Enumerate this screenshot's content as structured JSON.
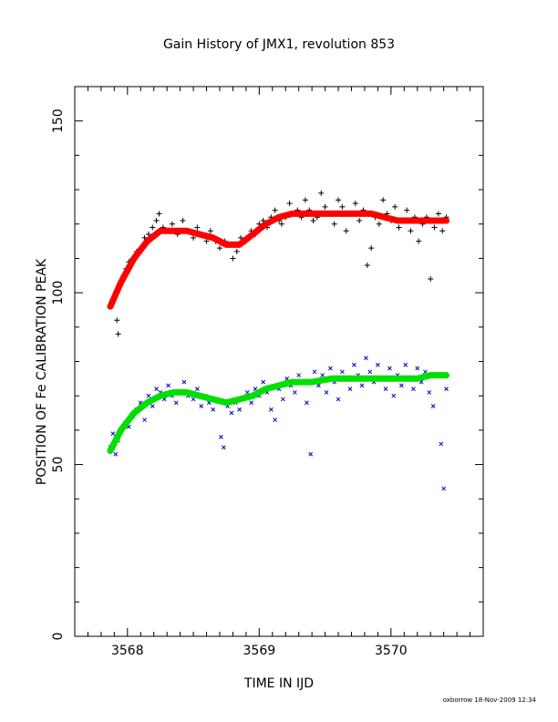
{
  "chart_data": {
    "type": "scatter",
    "title": "Gain History of JMX1, revolution 853",
    "xlabel": "TIME IN IJD",
    "ylabel": "POSITION OF Fe CALIBRATION PEAK",
    "xlim": [
      3567.6,
      3570.7
    ],
    "ylim": [
      0,
      160
    ],
    "xticks_major": [
      3568,
      3569,
      3570
    ],
    "xticks_minor_step": 0.1,
    "yticks_major": [
      0,
      50,
      100,
      150
    ],
    "yticks_minor_step": 10,
    "grid": false,
    "series": [
      {
        "marker": "plus",
        "color": "#000000",
        "points": [
          [
            3567.87,
            96
          ],
          [
            3567.9,
            99
          ],
          [
            3567.92,
            92
          ],
          [
            3567.93,
            88
          ],
          [
            3567.95,
            103
          ],
          [
            3567.97,
            105
          ],
          [
            3567.99,
            107
          ],
          [
            3568.01,
            109
          ],
          [
            3568.04,
            110
          ],
          [
            3568.07,
            112
          ],
          [
            3568.1,
            113
          ],
          [
            3568.13,
            116
          ],
          [
            3568.16,
            117
          ],
          [
            3568.19,
            119
          ],
          [
            3568.22,
            121
          ],
          [
            3568.24,
            123
          ],
          [
            3568.27,
            119
          ],
          [
            3568.3,
            118
          ],
          [
            3568.34,
            120
          ],
          [
            3568.38,
            117
          ],
          [
            3568.42,
            121
          ],
          [
            3568.46,
            118
          ],
          [
            3568.5,
            116
          ],
          [
            3568.53,
            119
          ],
          [
            3568.56,
            117
          ],
          [
            3568.6,
            115
          ],
          [
            3568.63,
            118
          ],
          [
            3568.67,
            115
          ],
          [
            3568.7,
            113
          ],
          [
            3568.74,
            115
          ],
          [
            3568.78,
            114
          ],
          [
            3568.8,
            110
          ],
          [
            3568.83,
            112
          ],
          [
            3568.86,
            116
          ],
          [
            3568.9,
            115
          ],
          [
            3568.94,
            118
          ],
          [
            3568.97,
            117
          ],
          [
            3569.0,
            120
          ],
          [
            3569.03,
            121
          ],
          [
            3569.06,
            119
          ],
          [
            3569.09,
            122
          ],
          [
            3569.12,
            124
          ],
          [
            3569.15,
            121
          ],
          [
            3569.17,
            120
          ],
          [
            3569.2,
            122
          ],
          [
            3569.23,
            126
          ],
          [
            3569.26,
            123
          ],
          [
            3569.29,
            124
          ],
          [
            3569.32,
            122
          ],
          [
            3569.35,
            127
          ],
          [
            3569.38,
            124
          ],
          [
            3569.41,
            121
          ],
          [
            3569.44,
            122
          ],
          [
            3569.47,
            129
          ],
          [
            3569.5,
            125
          ],
          [
            3569.53,
            123
          ],
          [
            3569.57,
            120
          ],
          [
            3569.6,
            127
          ],
          [
            3569.63,
            125
          ],
          [
            3569.66,
            118
          ],
          [
            3569.7,
            123
          ],
          [
            3569.73,
            126
          ],
          [
            3569.76,
            121
          ],
          [
            3569.79,
            124
          ],
          [
            3569.82,
            108
          ],
          [
            3569.85,
            113
          ],
          [
            3569.88,
            122
          ],
          [
            3569.91,
            120
          ],
          [
            3569.94,
            127
          ],
          [
            3569.97,
            123
          ],
          [
            3570.0,
            121
          ],
          [
            3570.03,
            125
          ],
          [
            3570.06,
            119
          ],
          [
            3570.09,
            121
          ],
          [
            3570.12,
            124
          ],
          [
            3570.15,
            118
          ],
          [
            3570.18,
            122
          ],
          [
            3570.21,
            115
          ],
          [
            3570.24,
            120
          ],
          [
            3570.27,
            122
          ],
          [
            3570.3,
            104
          ],
          [
            3570.33,
            119
          ],
          [
            3570.36,
            123
          ],
          [
            3570.39,
            118
          ],
          [
            3570.42,
            122
          ]
        ]
      },
      {
        "marker": "cross",
        "color": "#0000cc",
        "points": [
          [
            3567.87,
            55
          ],
          [
            3567.89,
            59
          ],
          [
            3567.91,
            53
          ],
          [
            3567.93,
            57
          ],
          [
            3567.95,
            60
          ],
          [
            3567.98,
            62
          ],
          [
            3568.01,
            61
          ],
          [
            3568.04,
            64
          ],
          [
            3568.07,
            66
          ],
          [
            3568.1,
            68
          ],
          [
            3568.13,
            63
          ],
          [
            3568.16,
            70
          ],
          [
            3568.19,
            67
          ],
          [
            3568.22,
            72
          ],
          [
            3568.25,
            71
          ],
          [
            3568.28,
            69
          ],
          [
            3568.31,
            73
          ],
          [
            3568.34,
            70
          ],
          [
            3568.37,
            68
          ],
          [
            3568.4,
            71
          ],
          [
            3568.43,
            74
          ],
          [
            3568.46,
            70
          ],
          [
            3568.5,
            69
          ],
          [
            3568.53,
            72
          ],
          [
            3568.56,
            67
          ],
          [
            3568.59,
            70
          ],
          [
            3568.62,
            68
          ],
          [
            3568.65,
            66
          ],
          [
            3568.68,
            69
          ],
          [
            3568.71,
            58
          ],
          [
            3568.73,
            55
          ],
          [
            3568.76,
            67
          ],
          [
            3568.79,
            65
          ],
          [
            3568.82,
            68
          ],
          [
            3568.85,
            66
          ],
          [
            3568.88,
            69
          ],
          [
            3568.91,
            71
          ],
          [
            3568.94,
            68
          ],
          [
            3568.97,
            72
          ],
          [
            3569.0,
            70
          ],
          [
            3569.03,
            74
          ],
          [
            3569.06,
            71
          ],
          [
            3569.09,
            66
          ],
          [
            3569.12,
            63
          ],
          [
            3569.15,
            72
          ],
          [
            3569.18,
            69
          ],
          [
            3569.21,
            75
          ],
          [
            3569.24,
            73
          ],
          [
            3569.27,
            71
          ],
          [
            3569.3,
            76
          ],
          [
            3569.33,
            74
          ],
          [
            3569.36,
            68
          ],
          [
            3569.39,
            53
          ],
          [
            3569.42,
            77
          ],
          [
            3569.45,
            73
          ],
          [
            3569.48,
            76
          ],
          [
            3569.51,
            71
          ],
          [
            3569.54,
            78
          ],
          [
            3569.57,
            74
          ],
          [
            3569.6,
            69
          ],
          [
            3569.63,
            77
          ],
          [
            3569.66,
            75
          ],
          [
            3569.69,
            72
          ],
          [
            3569.72,
            79
          ],
          [
            3569.75,
            76
          ],
          [
            3569.78,
            73
          ],
          [
            3569.81,
            81
          ],
          [
            3569.84,
            77
          ],
          [
            3569.87,
            74
          ],
          [
            3569.9,
            79
          ],
          [
            3569.93,
            75
          ],
          [
            3569.96,
            72
          ],
          [
            3569.99,
            78
          ],
          [
            3570.02,
            70
          ],
          [
            3570.05,
            76
          ],
          [
            3570.08,
            73
          ],
          [
            3570.11,
            79
          ],
          [
            3570.14,
            75
          ],
          [
            3570.17,
            72
          ],
          [
            3570.2,
            78
          ],
          [
            3570.23,
            74
          ],
          [
            3570.26,
            77
          ],
          [
            3570.29,
            71
          ],
          [
            3570.32,
            67
          ],
          [
            3570.35,
            76
          ],
          [
            3570.38,
            56
          ],
          [
            3570.4,
            43
          ],
          [
            3570.42,
            72
          ]
        ]
      },
      {
        "marker": "line",
        "color": "#ff0000",
        "points": [
          [
            3567.87,
            96
          ],
          [
            3567.95,
            103
          ],
          [
            3568.05,
            110
          ],
          [
            3568.15,
            115
          ],
          [
            3568.25,
            118
          ],
          [
            3568.35,
            118
          ],
          [
            3568.45,
            118
          ],
          [
            3568.55,
            117
          ],
          [
            3568.65,
            116
          ],
          [
            3568.75,
            114
          ],
          [
            3568.85,
            114
          ],
          [
            3568.95,
            117
          ],
          [
            3569.05,
            120
          ],
          [
            3569.15,
            122
          ],
          [
            3569.25,
            123
          ],
          [
            3569.4,
            123
          ],
          [
            3569.55,
            123
          ],
          [
            3569.7,
            123
          ],
          [
            3569.85,
            123
          ],
          [
            3569.95,
            122
          ],
          [
            3570.05,
            121
          ],
          [
            3570.2,
            121
          ],
          [
            3570.3,
            121
          ],
          [
            3570.42,
            121
          ]
        ]
      },
      {
        "marker": "line",
        "color": "#00e000",
        "points": [
          [
            3567.87,
            54
          ],
          [
            3567.95,
            60
          ],
          [
            3568.05,
            65
          ],
          [
            3568.15,
            68
          ],
          [
            3568.25,
            70
          ],
          [
            3568.35,
            71
          ],
          [
            3568.45,
            71
          ],
          [
            3568.55,
            70
          ],
          [
            3568.65,
            69
          ],
          [
            3568.75,
            68
          ],
          [
            3568.85,
            69
          ],
          [
            3568.95,
            70
          ],
          [
            3569.05,
            72
          ],
          [
            3569.15,
            73
          ],
          [
            3569.25,
            74
          ],
          [
            3569.4,
            74
          ],
          [
            3569.55,
            75
          ],
          [
            3569.7,
            75
          ],
          [
            3569.85,
            75
          ],
          [
            3569.95,
            75
          ],
          [
            3570.05,
            75
          ],
          [
            3570.2,
            75
          ],
          [
            3570.3,
            76
          ],
          [
            3570.42,
            76
          ]
        ]
      }
    ]
  },
  "footer": "oxborrow 18-Nov-2009 12:34"
}
